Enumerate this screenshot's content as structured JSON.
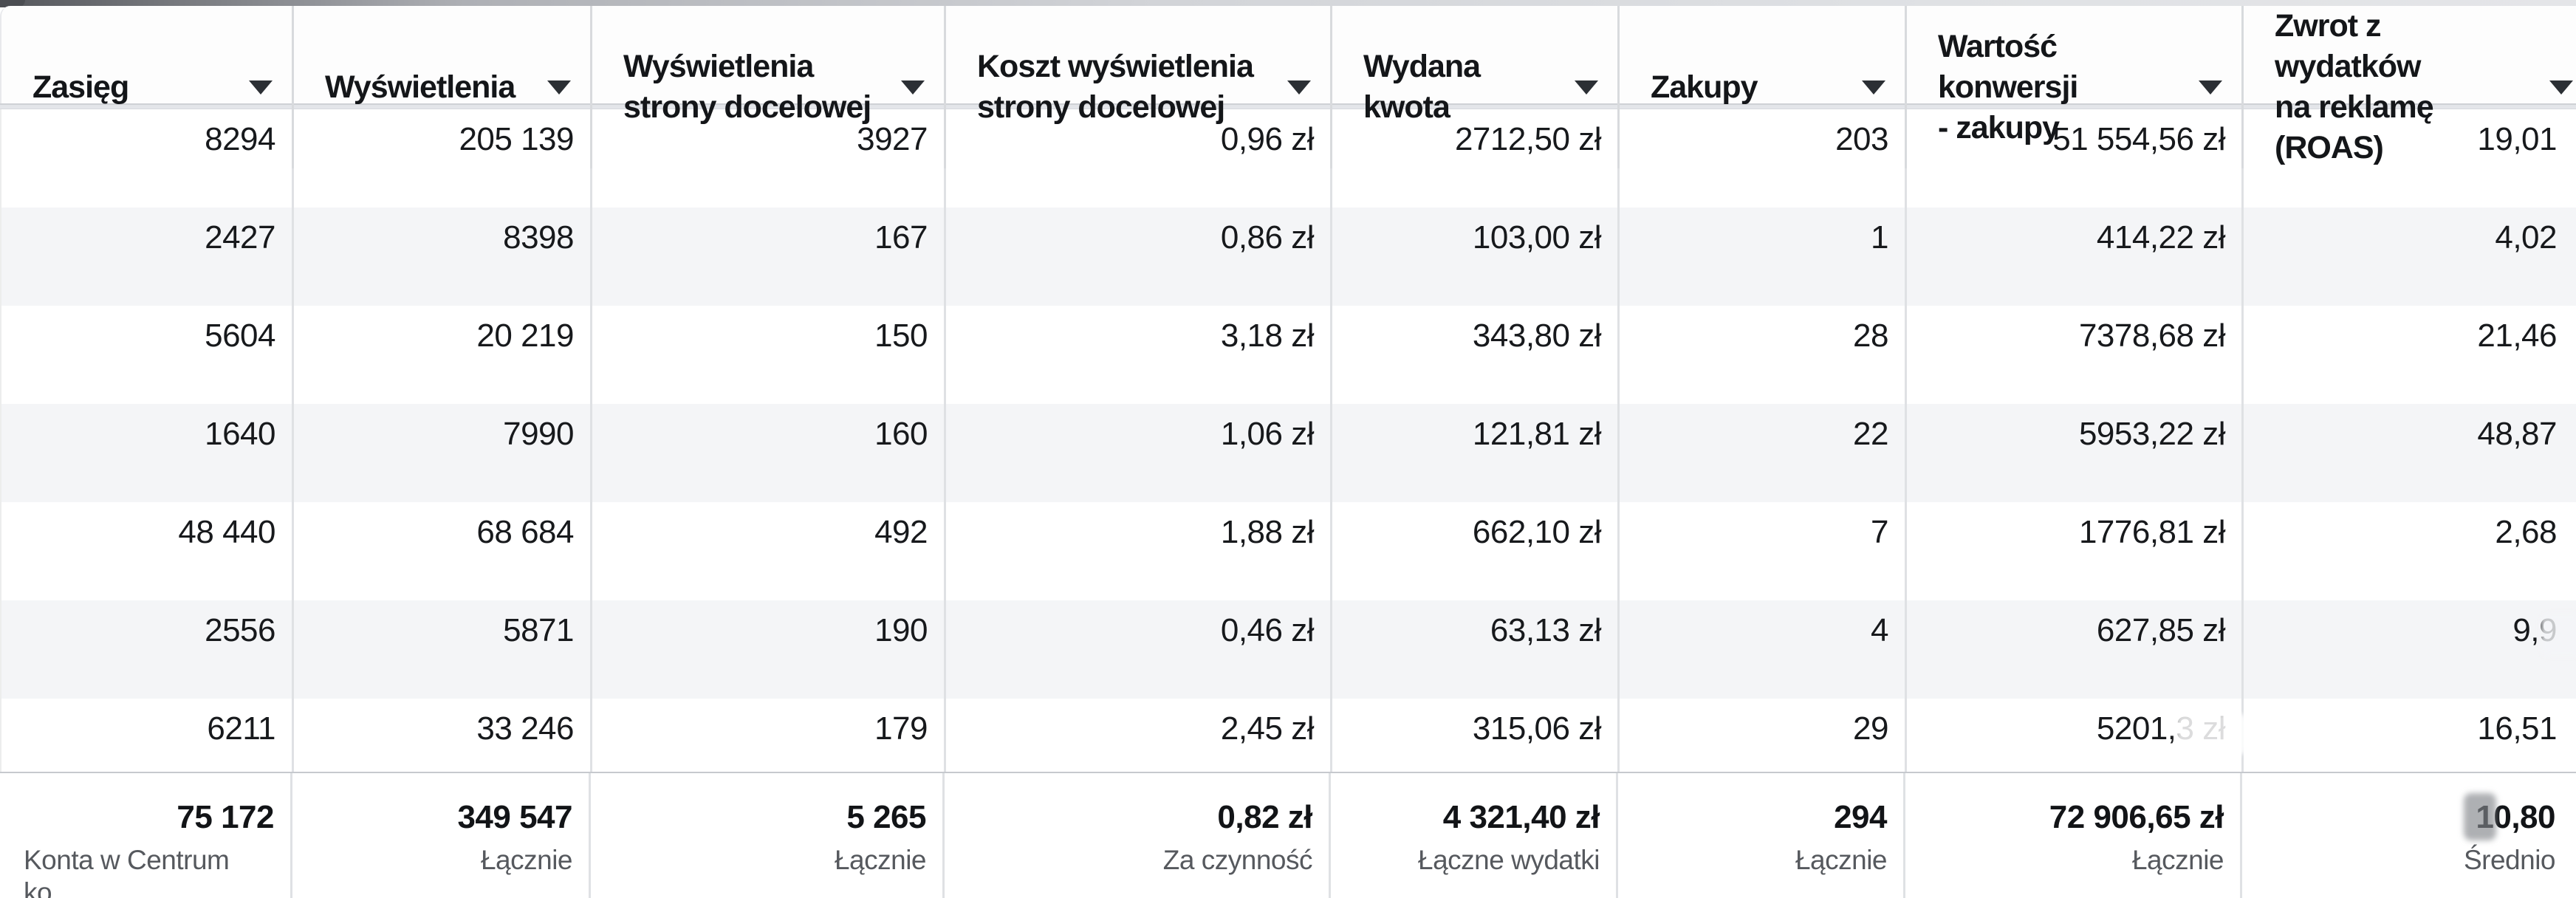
{
  "table": {
    "columns": [
      {
        "id": "zasieg",
        "label": "Zasięg"
      },
      {
        "id": "wyswietlenia",
        "label": "Wyświetlenia"
      },
      {
        "id": "wyswietlenia_strony",
        "label": "Wyświetlenia\nstrony docelowej"
      },
      {
        "id": "koszt_wyswietlenia",
        "label": "Koszt wyświetlenia\nstrony docelowej"
      },
      {
        "id": "wydana_kwota",
        "label": "Wydana kwota"
      },
      {
        "id": "zakupy",
        "label": "Zakupy"
      },
      {
        "id": "wartosc_konwersji",
        "label": "Wartość konwersji\n- zakupy"
      },
      {
        "id": "roas",
        "label": "Zwrot z wydatków\nna reklamę (ROAS)"
      }
    ],
    "sort_icon": "caret-down",
    "rows": [
      [
        "8294",
        "205 139",
        "3927",
        "0,96 zł",
        "2712,50 zł",
        "203",
        "51 554,56 zł",
        "19,01"
      ],
      [
        "2427",
        "8398",
        "167",
        "0,86 zł",
        "103,00 zł",
        "1",
        "414,22 zł",
        "4,02"
      ],
      [
        "5604",
        "20 219",
        "150",
        "3,18 zł",
        "343,80 zł",
        "28",
        "7378,68 zł",
        "21,46"
      ],
      [
        "1640",
        "7990",
        "160",
        "1,06 zł",
        "121,81 zł",
        "22",
        "5953,22 zł",
        "48,87"
      ],
      [
        "48 440",
        "68 684",
        "492",
        "1,88 zł",
        "662,10 zł",
        "7",
        "1776,81 zł",
        "2,68"
      ],
      [
        "2556",
        "5871",
        "190",
        "0,46 zł",
        "63,13 zł",
        "4",
        "627,85 zł",
        "9,9"
      ],
      [
        "6211",
        "33 246",
        "179",
        "2,45 zł",
        "315,06 zł",
        "29",
        "5201,3 zł",
        "16,51"
      ]
    ],
    "footer": [
      {
        "value": "75 172",
        "label": "Konta w Centrum ko..."
      },
      {
        "value": "349 547",
        "label": "Łącznie"
      },
      {
        "value": "5 265",
        "label": "Łącznie"
      },
      {
        "value": "0,82 zł",
        "label": "Za czynność"
      },
      {
        "value": "4 321,40 zł",
        "label": "Łączne wydatki"
      },
      {
        "value": "294",
        "label": "Łącznie"
      },
      {
        "value": "72 906,65 zł",
        "label": "Łącznie"
      },
      {
        "value": "10,80",
        "label": "Średnio"
      }
    ],
    "colors": {
      "row_alt": "#f4f5f7",
      "column_border": "#dfe1e4",
      "footer_border": "#c6c9ce",
      "text": "#17191c",
      "muted_text": "#56595e",
      "caret": "#2b2f34"
    }
  }
}
